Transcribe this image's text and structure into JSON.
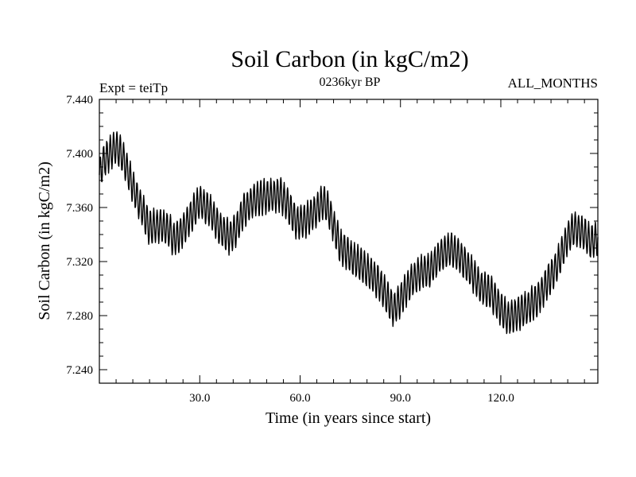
{
  "chart_data": {
    "type": "line",
    "title": "Soil Carbon (in kgC/m2)",
    "subtitle_left": "Expt = teiTp",
    "subtitle_center": "0236kyr BP",
    "subtitle_right": "ALL_MONTHS",
    "xlabel": "Time (in years since start)",
    "ylabel": "Soil Carbon (in kgC/m2)",
    "xlim": [
      0,
      149
    ],
    "ylim": [
      7.23,
      7.44
    ],
    "xticks": [
      30,
      60,
      90,
      120
    ],
    "xtick_labels": [
      "30.0",
      "60.0",
      "90.0",
      "120.0"
    ],
    "yticks": [
      7.24,
      7.28,
      7.32,
      7.36,
      7.4,
      7.44
    ],
    "ytick_labels": [
      "7.240",
      "7.280",
      "7.320",
      "7.360",
      "7.400",
      "7.440"
    ],
    "seasonal_amplitude": 0.012,
    "series": [
      {
        "name": "Soil Carbon",
        "samples_per_year": 12,
        "envelope_x": [
          0,
          1,
          3,
          5,
          7,
          9,
          11,
          13,
          15,
          18,
          21,
          22,
          24,
          27,
          30,
          33,
          36,
          39,
          41,
          43,
          46,
          49,
          51,
          54,
          56,
          59,
          62,
          65,
          67,
          69,
          72,
          75,
          78,
          81,
          84,
          86,
          88,
          90,
          93,
          96,
          99,
          102,
          105,
          108,
          111,
          114,
          117,
          120,
          122,
          124,
          126,
          128,
          131,
          134,
          137,
          140,
          142,
          145,
          147,
          149
        ],
        "envelope_y": [
          7.384,
          7.393,
          7.4,
          7.405,
          7.397,
          7.383,
          7.369,
          7.357,
          7.345,
          7.347,
          7.343,
          7.336,
          7.34,
          7.352,
          7.364,
          7.358,
          7.344,
          7.338,
          7.344,
          7.357,
          7.365,
          7.368,
          7.368,
          7.37,
          7.363,
          7.349,
          7.351,
          7.358,
          7.365,
          7.355,
          7.331,
          7.324,
          7.318,
          7.311,
          7.303,
          7.293,
          7.284,
          7.292,
          7.305,
          7.312,
          7.314,
          7.325,
          7.33,
          7.323,
          7.313,
          7.301,
          7.297,
          7.285,
          7.278,
          7.28,
          7.283,
          7.286,
          7.292,
          7.305,
          7.318,
          7.338,
          7.345,
          7.34,
          7.334,
          7.338
        ]
      }
    ]
  }
}
